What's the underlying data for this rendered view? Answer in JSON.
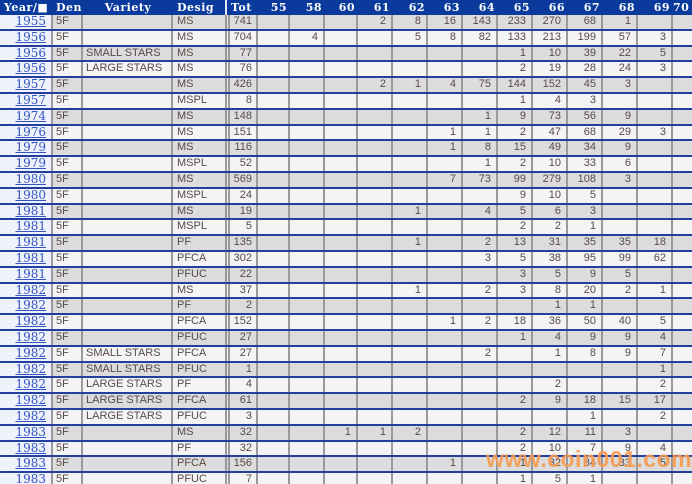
{
  "header": {
    "columns": [
      {
        "key": "year",
        "label": "Year/■"
      },
      {
        "key": "den",
        "label": "Den"
      },
      {
        "key": "variety",
        "label": "Variety"
      },
      {
        "key": "desig",
        "label": "Desig"
      },
      {
        "key": "tot",
        "label": "Tot"
      },
      {
        "key": "g55",
        "label": "55"
      },
      {
        "key": "g58",
        "label": "58"
      },
      {
        "key": "g60",
        "label": "60"
      },
      {
        "key": "g61",
        "label": "61"
      },
      {
        "key": "g62",
        "label": "62"
      },
      {
        "key": "g63",
        "label": "63"
      },
      {
        "key": "g64",
        "label": "64"
      },
      {
        "key": "g65",
        "label": "65"
      },
      {
        "key": "g66",
        "label": "66"
      },
      {
        "key": "g67",
        "label": "67"
      },
      {
        "key": "g68",
        "label": "68"
      },
      {
        "key": "g69",
        "label": "69"
      },
      {
        "key": "g70",
        "label": "70"
      }
    ]
  },
  "rows": [
    {
      "year": "1955",
      "den": "5F",
      "variety": "",
      "desig": "MS",
      "tot": "741",
      "g61": "2",
      "g62": "8",
      "g63": "16",
      "g64": "143",
      "g65": "233",
      "g66": "270",
      "g67": "68",
      "g68": "1"
    },
    {
      "year": "1956",
      "den": "5F",
      "variety": "",
      "desig": "MS",
      "tot": "704",
      "g58": "4",
      "g62": "5",
      "g63": "8",
      "g64": "82",
      "g65": "133",
      "g66": "213",
      "g67": "199",
      "g68": "57",
      "g69": "3"
    },
    {
      "year": "1956",
      "den": "5F",
      "variety": "SMALL STARS",
      "desig": "MS",
      "tot": "77",
      "g65": "1",
      "g66": "10",
      "g67": "39",
      "g68": "22",
      "g69": "5"
    },
    {
      "year": "1956",
      "den": "5F",
      "variety": "LARGE STARS",
      "desig": "MS",
      "tot": "76",
      "g65": "2",
      "g66": "19",
      "g67": "28",
      "g68": "24",
      "g69": "3"
    },
    {
      "year": "1957",
      "den": "5F",
      "variety": "",
      "desig": "MS",
      "tot": "426",
      "g61": "2",
      "g62": "1",
      "g63": "4",
      "g64": "75",
      "g65": "144",
      "g66": "152",
      "g67": "45",
      "g68": "3"
    },
    {
      "year": "1957",
      "den": "5F",
      "variety": "",
      "desig": "MSPL",
      "tot": "8",
      "g65": "1",
      "g66": "4",
      "g67": "3"
    },
    {
      "year": "1974",
      "den": "5F",
      "variety": "",
      "desig": "MS",
      "tot": "148",
      "g64": "1",
      "g65": "9",
      "g66": "73",
      "g67": "56",
      "g68": "9"
    },
    {
      "year": "1976",
      "den": "5F",
      "variety": "",
      "desig": "MS",
      "tot": "151",
      "g63": "1",
      "g64": "1",
      "g65": "2",
      "g66": "47",
      "g67": "68",
      "g68": "29",
      "g69": "3"
    },
    {
      "year": "1979",
      "den": "5F",
      "variety": "",
      "desig": "MS",
      "tot": "116",
      "g63": "1",
      "g64": "8",
      "g65": "15",
      "g66": "49",
      "g67": "34",
      "g68": "9"
    },
    {
      "year": "1979",
      "den": "5F",
      "variety": "",
      "desig": "MSPL",
      "tot": "52",
      "g64": "1",
      "g65": "2",
      "g66": "10",
      "g67": "33",
      "g68": "6"
    },
    {
      "year": "1980",
      "den": "5F",
      "variety": "",
      "desig": "MS",
      "tot": "569",
      "g63": "7",
      "g64": "73",
      "g65": "99",
      "g66": "279",
      "g67": "108",
      "g68": "3"
    },
    {
      "year": "1980",
      "den": "5F",
      "variety": "",
      "desig": "MSPL",
      "tot": "24",
      "g65": "9",
      "g66": "10",
      "g67": "5"
    },
    {
      "year": "1981",
      "den": "5F",
      "variety": "",
      "desig": "MS",
      "tot": "19",
      "g62": "1",
      "g64": "4",
      "g65": "5",
      "g66": "6",
      "g67": "3"
    },
    {
      "year": "1981",
      "den": "5F",
      "variety": "",
      "desig": "MSPL",
      "tot": "5",
      "g65": "2",
      "g66": "2",
      "g67": "1"
    },
    {
      "year": "1981",
      "den": "5F",
      "variety": "",
      "desig": "PF",
      "tot": "135",
      "g62": "1",
      "g64": "2",
      "g65": "13",
      "g66": "31",
      "g67": "35",
      "g68": "35",
      "g69": "18"
    },
    {
      "year": "1981",
      "den": "5F",
      "variety": "",
      "desig": "PFCA",
      "tot": "302",
      "g64": "3",
      "g65": "5",
      "g66": "38",
      "g67": "95",
      "g68": "99",
      "g69": "62"
    },
    {
      "year": "1981",
      "den": "5F",
      "variety": "",
      "desig": "PFUC",
      "tot": "22",
      "g65": "3",
      "g66": "5",
      "g67": "9",
      "g68": "5"
    },
    {
      "year": "1982",
      "den": "5F",
      "variety": "",
      "desig": "MS",
      "tot": "37",
      "g62": "1",
      "g64": "2",
      "g65": "3",
      "g66": "8",
      "g67": "20",
      "g68": "2",
      "g69": "1"
    },
    {
      "year": "1982",
      "den": "5F",
      "variety": "",
      "desig": "PF",
      "tot": "2",
      "g66": "1",
      "g67": "1"
    },
    {
      "year": "1982",
      "den": "5F",
      "variety": "",
      "desig": "PFCA",
      "tot": "152",
      "g63": "1",
      "g64": "2",
      "g65": "18",
      "g66": "36",
      "g67": "50",
      "g68": "40",
      "g69": "5"
    },
    {
      "year": "1982",
      "den": "5F",
      "variety": "",
      "desig": "PFUC",
      "tot": "27",
      "g65": "1",
      "g66": "4",
      "g67": "9",
      "g68": "9",
      "g69": "4"
    },
    {
      "year": "1982",
      "den": "5F",
      "variety": "SMALL STARS",
      "desig": "PFCA",
      "tot": "27",
      "g64": "2",
      "g66": "1",
      "g67": "8",
      "g68": "9",
      "g69": "7"
    },
    {
      "year": "1982",
      "den": "5F",
      "variety": "SMALL STARS",
      "desig": "PFUC",
      "tot": "1",
      "g69": "1"
    },
    {
      "year": "1982",
      "den": "5F",
      "variety": "LARGE STARS",
      "desig": "PF",
      "tot": "4",
      "g66": "2",
      "g69": "2"
    },
    {
      "year": "1982",
      "den": "5F",
      "variety": "LARGE STARS",
      "desig": "PFCA",
      "tot": "61",
      "g65": "2",
      "g66": "9",
      "g67": "18",
      "g68": "15",
      "g69": "17"
    },
    {
      "year": "1982",
      "den": "5F",
      "variety": "LARGE STARS",
      "desig": "PFUC",
      "tot": "3",
      "g67": "1",
      "g69": "2"
    },
    {
      "year": "1983",
      "den": "5F",
      "variety": "",
      "desig": "MS",
      "tot": "32",
      "g60": "1",
      "g61": "1",
      "g62": "2",
      "g65": "2",
      "g66": "12",
      "g67": "11",
      "g68": "3"
    },
    {
      "year": "1983",
      "den": "5F",
      "variety": "",
      "desig": "PF",
      "tot": "32",
      "g65": "2",
      "g66": "10",
      "g67": "7",
      "g68": "9",
      "g69": "4"
    },
    {
      "year": "1983",
      "den": "5F",
      "variety": "",
      "desig": "PFCA",
      "tot": "156",
      "g63": "1",
      "g65": "1",
      "g66": "32",
      "g67": "84",
      "g68": "33",
      "g69": "5"
    },
    {
      "year": "1983",
      "den": "5F",
      "variety": "",
      "desig": "PFUC",
      "tot": "7",
      "g65": "1",
      "g66": "5",
      "g67": "1"
    }
  ],
  "watermark": {
    "text": "www.coin001.com"
  },
  "colors": {
    "header_bg": "#0a3a9c",
    "row_separator": "#223f9f",
    "grid_line": "#9a9a9a",
    "row_stripe_dark": "#dcdcdc",
    "row_stripe_light": "#f4f4f4",
    "year_column_bg": "#edf2fb",
    "year_link": "#3453c4",
    "data_text": "#584a48",
    "watermark_orange": "#f59c52"
  }
}
